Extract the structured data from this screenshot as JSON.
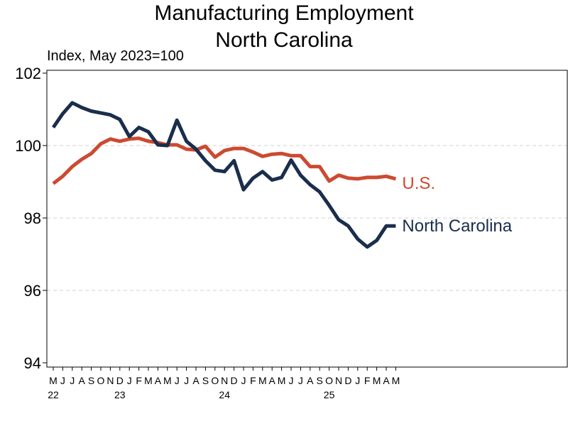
{
  "title_line1": "Manufacturing Employment",
  "title_line2": "North Carolina",
  "subtitle": "Index, May 2023=100",
  "colors": {
    "us": "#CC4A30",
    "nc": "#1A2E4C",
    "grid": "#d0d0d0"
  },
  "chart_data": {
    "type": "line",
    "title": "Manufacturing Employment North Carolina",
    "ylabel": "Index, May 2023=100",
    "ylim": [
      94,
      102
    ],
    "yticks": [
      94,
      96,
      98,
      100,
      102
    ],
    "grid": true,
    "x": [
      "M",
      "J",
      "J",
      "A",
      "S",
      "O",
      "N",
      "D",
      "J",
      "F",
      "M",
      "A",
      "M",
      "J",
      "J",
      "A",
      "S",
      "O",
      "N",
      "D",
      "J",
      "F",
      "M",
      "A",
      "M",
      "J",
      "J",
      "A",
      "S",
      "O",
      "N",
      "D",
      "J",
      "F",
      "M",
      "A",
      "M"
    ],
    "year_labels": [
      {
        "index": 0,
        "label": "22"
      },
      {
        "index": 7,
        "label": "23"
      },
      {
        "index": 18,
        "label": "24"
      },
      {
        "index": 29,
        "label": "25"
      }
    ],
    "series": [
      {
        "name": "U.S.",
        "color": "#CC4A30",
        "values": [
          98.95,
          99.15,
          99.42,
          99.62,
          99.78,
          100.05,
          100.18,
          100.12,
          100.18,
          100.2,
          100.12,
          100.08,
          100.02,
          100.02,
          99.9,
          99.88,
          99.98,
          99.68,
          99.86,
          99.92,
          99.92,
          99.82,
          99.7,
          99.76,
          99.78,
          99.72,
          99.72,
          99.42,
          99.42,
          99.02,
          99.18,
          99.1,
          99.08,
          99.12,
          99.12,
          99.15,
          99.08
        ]
      },
      {
        "name": "North Carolina",
        "color": "#1A2E4C",
        "values": [
          100.5,
          100.88,
          101.18,
          101.05,
          100.95,
          100.9,
          100.85,
          100.72,
          100.25,
          100.5,
          100.38,
          100.02,
          100.0,
          100.7,
          100.12,
          99.9,
          99.58,
          99.32,
          99.28,
          99.58,
          98.78,
          99.1,
          99.28,
          99.05,
          99.12,
          99.6,
          99.18,
          98.92,
          98.72,
          98.35,
          97.95,
          97.78,
          97.42,
          97.2,
          97.38,
          97.78,
          97.78
        ]
      }
    ]
  }
}
